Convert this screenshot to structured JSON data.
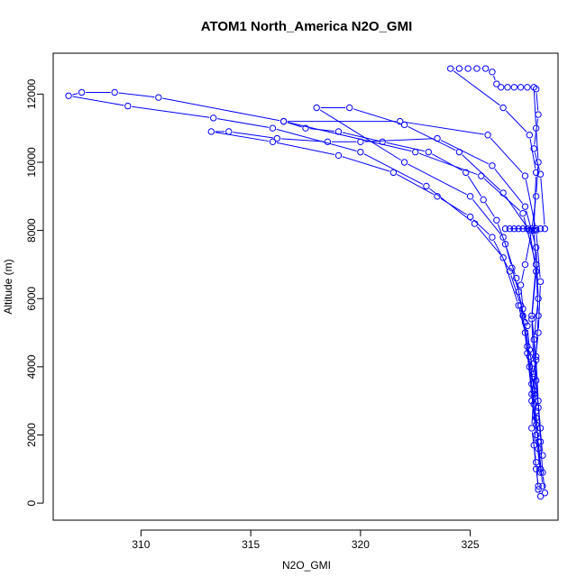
{
  "chart_data": {
    "type": "line",
    "title": "ATOM1 North_America N2O_GMI",
    "xlabel": "N2O_GMI",
    "ylabel": "Altitude (m)",
    "xlim": [
      306.0,
      329.0
    ],
    "ylim": [
      -500,
      13200
    ],
    "xticks": [
      310,
      315,
      320,
      325
    ],
    "yticks": [
      0,
      2000,
      4000,
      6000,
      8000,
      10000,
      12000
    ],
    "grid": false,
    "legend": "none",
    "series_color": "#0000ff",
    "series": [
      {
        "values": [
          {
            "x": 328.2,
            "y": 200
          },
          {
            "x": 328.1,
            "y": 500
          },
          {
            "x": 328.0,
            "y": 1000
          },
          {
            "x": 327.9,
            "y": 1700
          },
          {
            "x": 328.0,
            "y": 2300
          },
          {
            "x": 327.8,
            "y": 3000
          },
          {
            "x": 327.9,
            "y": 3700
          },
          {
            "x": 327.7,
            "y": 4500
          },
          {
            "x": 327.6,
            "y": 5200
          },
          {
            "x": 327.4,
            "y": 5700
          },
          {
            "x": 327.3,
            "y": 6400
          },
          {
            "x": 327.5,
            "y": 7000
          },
          {
            "x": 327.8,
            "y": 8000
          },
          {
            "x": 328.0,
            "y": 9000
          },
          {
            "x": 328.1,
            "y": 10000
          },
          {
            "x": 328.0,
            "y": 11000
          },
          {
            "x": 327.9,
            "y": 12200
          },
          {
            "x": 327.6,
            "y": 12200
          },
          {
            "x": 327.3,
            "y": 12200
          },
          {
            "x": 327.0,
            "y": 12200
          },
          {
            "x": 326.7,
            "y": 12200
          },
          {
            "x": 326.4,
            "y": 12200
          },
          {
            "x": 326.2,
            "y": 12300
          },
          {
            "x": 326.0,
            "y": 12650
          },
          {
            "x": 325.7,
            "y": 12750
          },
          {
            "x": 325.3,
            "y": 12750
          },
          {
            "x": 324.9,
            "y": 12750
          },
          {
            "x": 324.5,
            "y": 12750
          },
          {
            "x": 324.1,
            "y": 12750
          },
          {
            "x": 326.5,
            "y": 11600
          },
          {
            "x": 327.7,
            "y": 10800
          },
          {
            "x": 328.0,
            "y": 9700
          },
          {
            "x": 327.9,
            "y": 8000
          },
          {
            "x": 328.0,
            "y": 7000
          },
          {
            "x": 327.8,
            "y": 5500
          },
          {
            "x": 328.0,
            "y": 4200
          },
          {
            "x": 328.1,
            "y": 3000
          },
          {
            "x": 328.2,
            "y": 1800
          },
          {
            "x": 328.3,
            "y": 900
          },
          {
            "x": 328.4,
            "y": 300
          }
        ]
      },
      {
        "values": [
          {
            "x": 328.1,
            "y": 400
          },
          {
            "x": 328.0,
            "y": 1200
          },
          {
            "x": 327.8,
            "y": 2200
          },
          {
            "x": 327.9,
            "y": 3300
          },
          {
            "x": 327.7,
            "y": 4300
          },
          {
            "x": 327.5,
            "y": 5300
          },
          {
            "x": 327.2,
            "y": 6200
          },
          {
            "x": 326.9,
            "y": 6900
          },
          {
            "x": 326.6,
            "y": 7600
          },
          {
            "x": 326.2,
            "y": 8300
          },
          {
            "x": 325.6,
            "y": 8900
          },
          {
            "x": 324.8,
            "y": 9700
          },
          {
            "x": 323.1,
            "y": 10300
          },
          {
            "x": 321.0,
            "y": 10600
          },
          {
            "x": 319.0,
            "y": 10900
          },
          {
            "x": 317.5,
            "y": 11000
          },
          {
            "x": 316.5,
            "y": 11200
          },
          {
            "x": 321.8,
            "y": 11200
          },
          {
            "x": 325.8,
            "y": 10800
          },
          {
            "x": 327.5,
            "y": 9600
          },
          {
            "x": 328.0,
            "y": 8000
          },
          {
            "x": 328.2,
            "y": 6500
          },
          {
            "x": 328.1,
            "y": 5000
          },
          {
            "x": 327.9,
            "y": 3800
          },
          {
            "x": 328.0,
            "y": 2700
          },
          {
            "x": 328.1,
            "y": 1600
          }
        ]
      },
      {
        "values": [
          {
            "x": 328.2,
            "y": 1000
          },
          {
            "x": 328.0,
            "y": 2500
          },
          {
            "x": 327.8,
            "y": 3500
          },
          {
            "x": 327.6,
            "y": 4600
          },
          {
            "x": 327.3,
            "y": 5800
          },
          {
            "x": 326.8,
            "y": 6800
          },
          {
            "x": 326.0,
            "y": 7800
          },
          {
            "x": 325.0,
            "y": 8400
          },
          {
            "x": 323.5,
            "y": 9000
          },
          {
            "x": 321.5,
            "y": 9700
          },
          {
            "x": 319.0,
            "y": 10200
          },
          {
            "x": 316.0,
            "y": 10600
          },
          {
            "x": 313.2,
            "y": 10900
          },
          {
            "x": 314.0,
            "y": 10900
          },
          {
            "x": 316.2,
            "y": 10700
          },
          {
            "x": 318.5,
            "y": 10600
          },
          {
            "x": 320.0,
            "y": 10600
          },
          {
            "x": 323.5,
            "y": 10700
          },
          {
            "x": 326.0,
            "y": 9900
          },
          {
            "x": 327.5,
            "y": 8700
          },
          {
            "x": 328.0,
            "y": 7500
          },
          {
            "x": 328.1,
            "y": 6000
          },
          {
            "x": 327.9,
            "y": 4800
          },
          {
            "x": 328.0,
            "y": 3600
          },
          {
            "x": 328.2,
            "y": 2200
          }
        ]
      },
      {
        "values": [
          {
            "x": 328.3,
            "y": 500
          },
          {
            "x": 328.1,
            "y": 1800
          },
          {
            "x": 327.9,
            "y": 2900
          },
          {
            "x": 327.7,
            "y": 4000
          },
          {
            "x": 327.5,
            "y": 5000
          },
          {
            "x": 327.2,
            "y": 5800
          },
          {
            "x": 326.5,
            "y": 7200
          },
          {
            "x": 325.2,
            "y": 8200
          },
          {
            "x": 323.0,
            "y": 9300
          },
          {
            "x": 320.0,
            "y": 10300
          },
          {
            "x": 316.0,
            "y": 11000
          },
          {
            "x": 313.3,
            "y": 11300
          },
          {
            "x": 309.4,
            "y": 11650
          },
          {
            "x": 306.7,
            "y": 11950
          },
          {
            "x": 307.3,
            "y": 12050
          },
          {
            "x": 308.8,
            "y": 12050
          },
          {
            "x": 310.8,
            "y": 11900
          },
          {
            "x": 316.5,
            "y": 11200
          },
          {
            "x": 322.5,
            "y": 10300
          },
          {
            "x": 325.5,
            "y": 9600
          },
          {
            "x": 327.4,
            "y": 8500
          },
          {
            "x": 328.0,
            "y": 7000
          },
          {
            "x": 328.1,
            "y": 5500
          },
          {
            "x": 328.0,
            "y": 4300
          },
          {
            "x": 327.9,
            "y": 3200
          }
        ]
      },
      {
        "values": [
          {
            "x": 328.2,
            "y": 900
          },
          {
            "x": 328.0,
            "y": 2000
          },
          {
            "x": 327.8,
            "y": 3200
          },
          {
            "x": 327.6,
            "y": 4400
          },
          {
            "x": 327.4,
            "y": 5500
          },
          {
            "x": 327.1,
            "y": 6600
          },
          {
            "x": 326.5,
            "y": 7800
          },
          {
            "x": 325.0,
            "y": 9000
          },
          {
            "x": 322.0,
            "y": 10000
          },
          {
            "x": 318.0,
            "y": 11600
          },
          {
            "x": 319.5,
            "y": 11600
          },
          {
            "x": 322.0,
            "y": 11100
          },
          {
            "x": 324.5,
            "y": 10300
          },
          {
            "x": 326.5,
            "y": 9100
          },
          {
            "x": 327.7,
            "y": 8000
          },
          {
            "x": 328.0,
            "y": 6800
          },
          {
            "x": 327.8,
            "y": 5400
          },
          {
            "x": 327.9,
            "y": 4100
          },
          {
            "x": 328.1,
            "y": 2800
          },
          {
            "x": 328.3,
            "y": 1400
          }
        ]
      },
      {
        "values": [
          {
            "x": 328.0,
            "y": 8050
          },
          {
            "x": 327.8,
            "y": 8050
          },
          {
            "x": 327.6,
            "y": 8050
          },
          {
            "x": 327.4,
            "y": 8050
          },
          {
            "x": 327.2,
            "y": 8050
          },
          {
            "x": 327.0,
            "y": 8050
          },
          {
            "x": 326.8,
            "y": 8050
          },
          {
            "x": 326.6,
            "y": 8050
          },
          {
            "x": 328.2,
            "y": 8050
          },
          {
            "x": 328.4,
            "y": 8050
          },
          {
            "x": 328.2,
            "y": 9650
          },
          {
            "x": 327.9,
            "y": 10400
          },
          {
            "x": 328.1,
            "y": 11400
          },
          {
            "x": 328.0,
            "y": 12150
          }
        ]
      }
    ]
  }
}
